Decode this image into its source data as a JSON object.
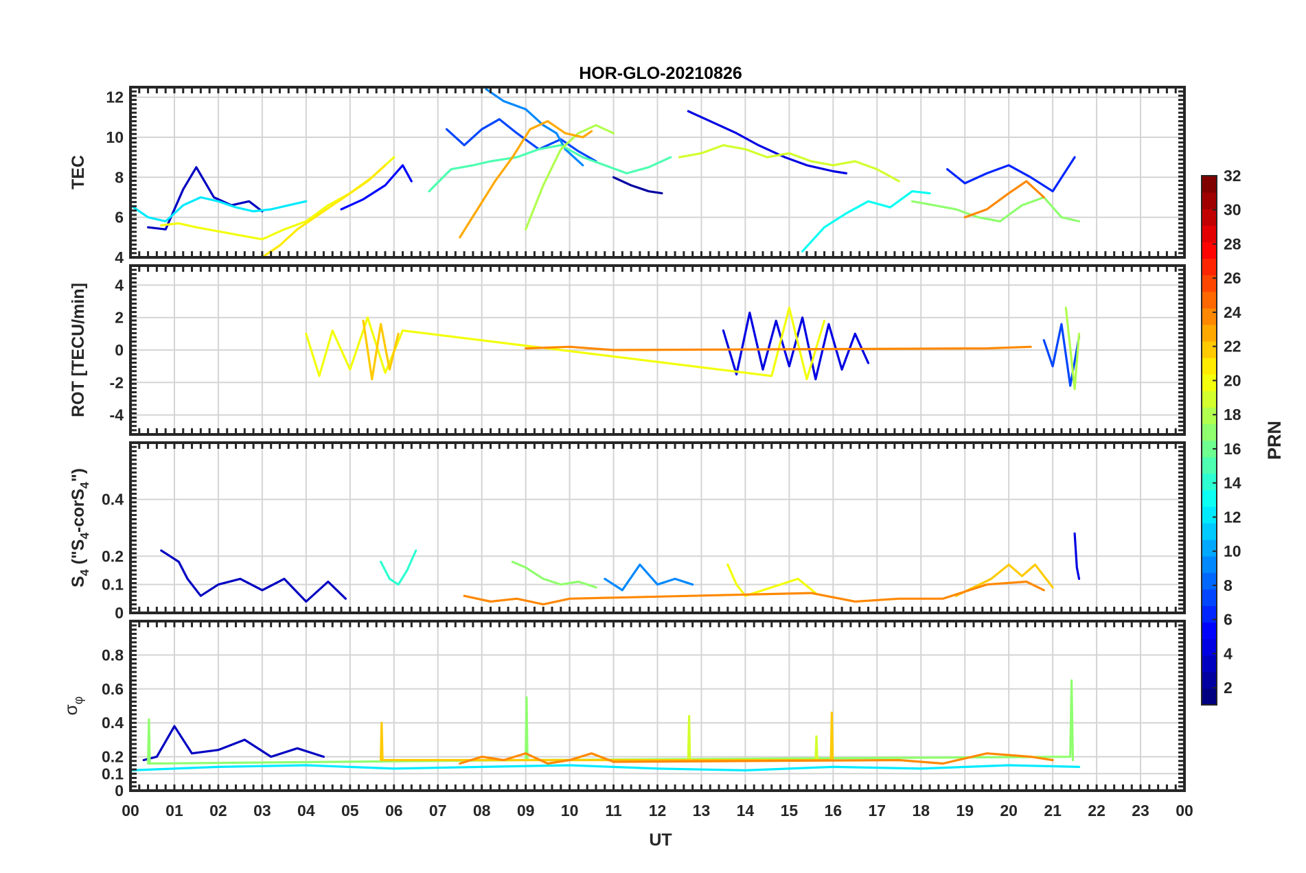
{
  "chart_data": {
    "type": "line",
    "title": "HOR-GLO-20210826",
    "xlabel": "UT",
    "x_tick_labels": [
      "00",
      "01",
      "02",
      "03",
      "04",
      "05",
      "06",
      "07",
      "08",
      "09",
      "10",
      "11",
      "12",
      "13",
      "14",
      "15",
      "16",
      "17",
      "18",
      "19",
      "20",
      "21",
      "22",
      "23",
      "00"
    ],
    "xlim": [
      0,
      24
    ],
    "colorbar": {
      "label": "PRN",
      "ticks": [
        "2",
        "4",
        "6",
        "8",
        "10",
        "12",
        "14",
        "16",
        "18",
        "20",
        "22",
        "24",
        "26",
        "28",
        "30",
        "32"
      ],
      "range": [
        1,
        32
      ],
      "colormap": "jet"
    },
    "panels": [
      {
        "id": "tec",
        "ylabel": "TEC",
        "ylim": [
          4,
          12.5
        ],
        "y_ticks": [
          "4",
          "6",
          "8",
          "10",
          "12"
        ],
        "y_tick_values": [
          4,
          6,
          8,
          10,
          12
        ],
        "series": [
          {
            "prn": 2,
            "x": [
              11.0,
              11.4,
              11.8,
              12.1
            ],
            "y": [
              8.0,
              7.6,
              7.3,
              7.2
            ]
          },
          {
            "prn": 3,
            "x": [
              0.4,
              0.8,
              1.2,
              1.5,
              1.9,
              2.3,
              2.7,
              3.0
            ],
            "y": [
              5.5,
              5.4,
              7.4,
              8.5,
              7.0,
              6.6,
              6.8,
              6.3
            ]
          },
          {
            "prn": 4,
            "x": [
              12.7,
              13.2,
              13.8,
              14.3,
              14.9,
              15.4,
              16.0,
              16.3
            ],
            "y": [
              11.3,
              10.8,
              10.2,
              9.6,
              9.0,
              8.6,
              8.3,
              8.2
            ]
          },
          {
            "prn": 5,
            "x": [
              4.8,
              5.3,
              5.8,
              6.2,
              6.4
            ],
            "y": [
              6.4,
              6.9,
              7.6,
              8.6,
              7.8
            ]
          },
          {
            "prn": 6,
            "x": [
              18.6,
              19.0,
              19.5,
              20.0,
              20.5,
              21.0,
              21.5
            ],
            "y": [
              8.4,
              7.7,
              8.2,
              8.6,
              8.0,
              7.3,
              9.0
            ]
          },
          {
            "prn": 7,
            "x": [
              7.2,
              7.6,
              8.0,
              8.4,
              8.8,
              9.3,
              9.8,
              10.2,
              10.6
            ],
            "y": [
              10.4,
              9.6,
              10.4,
              10.9,
              10.2,
              9.4,
              9.9,
              9.3,
              8.8
            ]
          },
          {
            "prn": 9,
            "x": [
              8.1,
              8.5,
              9.0,
              9.4,
              9.7,
              9.9,
              10.3
            ],
            "y": [
              12.4,
              11.8,
              11.4,
              10.6,
              10.2,
              9.4,
              8.6
            ]
          },
          {
            "prn": 12,
            "x": [
              0.0,
              0.4,
              0.8,
              1.2,
              1.6,
              2.0,
              2.4,
              2.8,
              3.2,
              3.6,
              4.0
            ],
            "y": [
              6.6,
              6.0,
              5.8,
              6.6,
              7.0,
              6.8,
              6.5,
              6.3,
              6.4,
              6.6,
              6.8
            ]
          },
          {
            "prn": 13,
            "x": [
              15.3,
              15.8,
              16.3,
              16.8,
              17.3,
              17.8,
              18.2
            ],
            "y": [
              4.3,
              5.5,
              6.2,
              6.8,
              6.5,
              7.3,
              7.2
            ]
          },
          {
            "prn": 15,
            "x": [
              6.8,
              7.3,
              7.8,
              8.2,
              8.8,
              9.3,
              9.8,
              10.3,
              10.8,
              11.3,
              11.8,
              12.3
            ],
            "y": [
              7.3,
              8.4,
              8.6,
              8.8,
              9.0,
              9.4,
              9.6,
              9.0,
              8.6,
              8.2,
              8.5,
              9.0
            ]
          },
          {
            "prn": 17,
            "x": [
              17.8,
              18.3,
              18.8,
              19.3,
              19.8,
              20.3,
              20.8,
              21.2,
              21.6
            ],
            "y": [
              6.8,
              6.6,
              6.4,
              6.0,
              5.8,
              6.6,
              7.0,
              6.0,
              5.8
            ]
          },
          {
            "prn": 18,
            "x": [
              9.0,
              9.4,
              9.8,
              10.2,
              10.6,
              11.0
            ],
            "y": [
              5.4,
              7.6,
              9.4,
              10.2,
              10.6,
              10.2
            ]
          },
          {
            "prn": 19,
            "x": [
              12.5,
              13.0,
              13.5,
              14.0,
              14.5,
              15.0,
              15.5,
              16.0,
              16.5,
              17.0,
              17.5
            ],
            "y": [
              9.0,
              9.2,
              9.6,
              9.4,
              9.0,
              9.2,
              8.8,
              8.6,
              8.8,
              8.4,
              7.8
            ]
          },
          {
            "prn": 20,
            "x": [
              0.7,
              1.1,
              1.5,
              2.0,
              2.5,
              3.0,
              3.5,
              4.0,
              4.5,
              5.0,
              5.5,
              6.0
            ],
            "y": [
              5.6,
              5.7,
              5.5,
              5.3,
              5.1,
              4.9,
              5.4,
              5.8,
              6.6,
              7.2,
              8.0,
              9.0
            ]
          },
          {
            "prn": 21,
            "x": [
              3.0,
              3.4,
              3.8,
              4.2,
              4.6,
              5.0,
              5.4,
              5.8
            ],
            "y": [
              4.0,
              4.6,
              5.4,
              6.0,
              6.6,
              7.2,
              7.8,
              8.6
            ]
          },
          {
            "prn": 23,
            "x": [
              7.5,
              7.9,
              8.3,
              8.7,
              9.1,
              9.5,
              9.9,
              10.3,
              10.5
            ],
            "y": [
              5.0,
              6.4,
              7.8,
              9.0,
              10.4,
              10.8,
              10.2,
              10.0,
              10.3
            ]
          },
          {
            "prn": 24,
            "x": [
              19.0,
              19.5,
              20.0,
              20.4,
              20.8
            ],
            "y": [
              6.0,
              6.4,
              7.2,
              7.8,
              7.0
            ]
          }
        ]
      },
      {
        "id": "rot",
        "ylabel": "ROT [TECU/min]",
        "ylim": [
          -5.2,
          5.2
        ],
        "y_ticks": [
          "-4",
          "-2",
          "0",
          "2",
          "4"
        ],
        "y_tick_values": [
          -4,
          -2,
          0,
          2,
          4
        ],
        "series": [
          {
            "prn": 4,
            "x": [
              13.5,
              13.8,
              14.1,
              14.4,
              14.7,
              15.0,
              15.3,
              15.6,
              15.9,
              16.2,
              16.5,
              16.8
            ],
            "y": [
              1.2,
              -1.5,
              2.3,
              -1.2,
              1.8,
              -1.0,
              2.0,
              -1.8,
              1.6,
              -1.2,
              1.0,
              -0.8
            ]
          },
          {
            "prn": 7,
            "x": [
              20.8,
              21.0,
              21.2,
              21.4,
              21.6
            ],
            "y": [
              0.6,
              -1.0,
              1.6,
              -2.2,
              0.8
            ]
          },
          {
            "prn": 18,
            "x": [
              21.3,
              21.5,
              21.6
            ],
            "y": [
              2.6,
              -2.4,
              1.0
            ]
          },
          {
            "prn": 20,
            "x": [
              4.0,
              4.3,
              4.6,
              5.0,
              5.4,
              5.8,
              6.2,
              14.6,
              15.0,
              15.4,
              15.8
            ],
            "y": [
              1.0,
              -1.6,
              1.2,
              -1.2,
              2.0,
              -1.4,
              1.2,
              -1.6,
              2.6,
              -1.8,
              1.8
            ]
          },
          {
            "prn": 22,
            "x": [
              5.3,
              5.5,
              5.7,
              5.9,
              6.1
            ],
            "y": [
              1.8,
              -1.8,
              1.6,
              -1.2,
              1.0
            ]
          },
          {
            "prn": 24,
            "x": [
              9.0,
              10.0,
              11.0,
              19.5,
              20.5
            ],
            "y": [
              0.1,
              0.2,
              0.0,
              0.1,
              0.2
            ]
          }
        ]
      },
      {
        "id": "s4",
        "ylabel": "S4 (\"S4-corS4\")",
        "ylabel_parts": [
          "S",
          "4",
          " (\"S",
          "4",
          "-corS",
          "4",
          "\")"
        ],
        "ylim": [
          0,
          0.6
        ],
        "y_ticks": [
          "0",
          "0.1",
          "0.2",
          "0.4"
        ],
        "y_tick_values": [
          0,
          0.1,
          0.2,
          0.4
        ],
        "series": [
          {
            "prn": 3,
            "x": [
              0.7,
              0.9,
              1.1,
              1.3,
              1.6,
              2.0,
              2.5,
              3.0,
              3.5,
              4.0,
              4.5,
              4.9
            ],
            "y": [
              0.22,
              0.2,
              0.18,
              0.12,
              0.06,
              0.1,
              0.12,
              0.08,
              0.12,
              0.04,
              0.11,
              0.05
            ]
          },
          {
            "prn": 4,
            "x": [
              21.5,
              21.55,
              21.6
            ],
            "y": [
              0.28,
              0.16,
              0.12
            ]
          },
          {
            "prn": 9,
            "x": [
              10.8,
              11.2,
              11.6,
              12.0,
              12.4,
              12.8
            ],
            "y": [
              0.12,
              0.08,
              0.17,
              0.1,
              0.12,
              0.1
            ]
          },
          {
            "prn": 14,
            "x": [
              5.7,
              5.9,
              6.1,
              6.3,
              6.5
            ],
            "y": [
              0.18,
              0.12,
              0.1,
              0.15,
              0.22
            ]
          },
          {
            "prn": 17,
            "x": [
              8.7,
              9.0,
              9.4,
              9.8,
              10.2,
              10.6
            ],
            "y": [
              0.18,
              0.16,
              0.12,
              0.1,
              0.11,
              0.09
            ]
          },
          {
            "prn": 20,
            "x": [
              13.6,
              13.8,
              14.0,
              15.2,
              15.6
            ],
            "y": [
              0.17,
              0.1,
              0.06,
              0.12,
              0.07
            ]
          },
          {
            "prn": 22,
            "x": [
              18.8,
              19.2,
              19.6,
              20.0,
              20.3,
              20.6,
              21.0
            ],
            "y": [
              0.06,
              0.09,
              0.12,
              0.17,
              0.13,
              0.17,
              0.09
            ]
          },
          {
            "prn": 24,
            "x": [
              7.6,
              8.2,
              8.8,
              9.4,
              10.0,
              15.5,
              16.5,
              17.5,
              18.5,
              19.5,
              20.4,
              20.8
            ],
            "y": [
              0.06,
              0.04,
              0.05,
              0.03,
              0.05,
              0.07,
              0.04,
              0.05,
              0.05,
              0.1,
              0.11,
              0.08
            ]
          }
        ]
      },
      {
        "id": "sigma",
        "ylabel": "σφ",
        "ylabel_parts": [
          "σ",
          "φ"
        ],
        "ylim": [
          0,
          1.0
        ],
        "y_ticks": [
          "0",
          "0.1",
          "0.2",
          "0.4",
          "0.6",
          "0.8"
        ],
        "y_tick_values": [
          0,
          0.1,
          0.2,
          0.4,
          0.6,
          0.8
        ],
        "series": [
          {
            "prn": 3,
            "x": [
              0.3,
              0.6,
              1.0,
              1.4,
              2.0,
              2.6,
              3.2,
              3.8,
              4.4
            ],
            "y": [
              0.18,
              0.2,
              0.38,
              0.22,
              0.24,
              0.3,
              0.2,
              0.25,
              0.2
            ]
          },
          {
            "prn": 12,
            "x": [
              0.0,
              2.0,
              4.0,
              6.0,
              8.0,
              10.0,
              12.0,
              14.0,
              16.0,
              18.0,
              20.0,
              21.6
            ],
            "y": [
              0.12,
              0.14,
              0.15,
              0.13,
              0.14,
              0.15,
              0.13,
              0.12,
              0.14,
              0.13,
              0.15,
              0.14
            ]
          },
          {
            "prn": 17,
            "x": [
              0.4,
              0.42,
              0.44,
              9.0,
              9.02,
              9.04,
              21.4,
              21.43,
              21.46
            ],
            "y": [
              0.16,
              0.42,
              0.16,
              0.18,
              0.55,
              0.18,
              0.2,
              0.65,
              0.18
            ]
          },
          {
            "prn": 19,
            "x": [
              12.7,
              12.72,
              12.74,
              15.6,
              15.62,
              15.64
            ],
            "y": [
              0.18,
              0.44,
              0.18,
              0.18,
              0.32,
              0.18
            ]
          },
          {
            "prn": 22,
            "x": [
              5.7,
              5.72,
              5.74,
              15.95,
              15.97,
              15.99
            ],
            "y": [
              0.18,
              0.4,
              0.18,
              0.18,
              0.46,
              0.18
            ]
          },
          {
            "prn": 24,
            "x": [
              7.5,
              8.0,
              8.5,
              9.0,
              9.5,
              10.0,
              10.5,
              11.0,
              17.5,
              18.5,
              19.5,
              20.5,
              21.0
            ],
            "y": [
              0.16,
              0.2,
              0.18,
              0.22,
              0.16,
              0.18,
              0.22,
              0.17,
              0.18,
              0.16,
              0.22,
              0.2,
              0.18
            ]
          }
        ]
      }
    ]
  }
}
